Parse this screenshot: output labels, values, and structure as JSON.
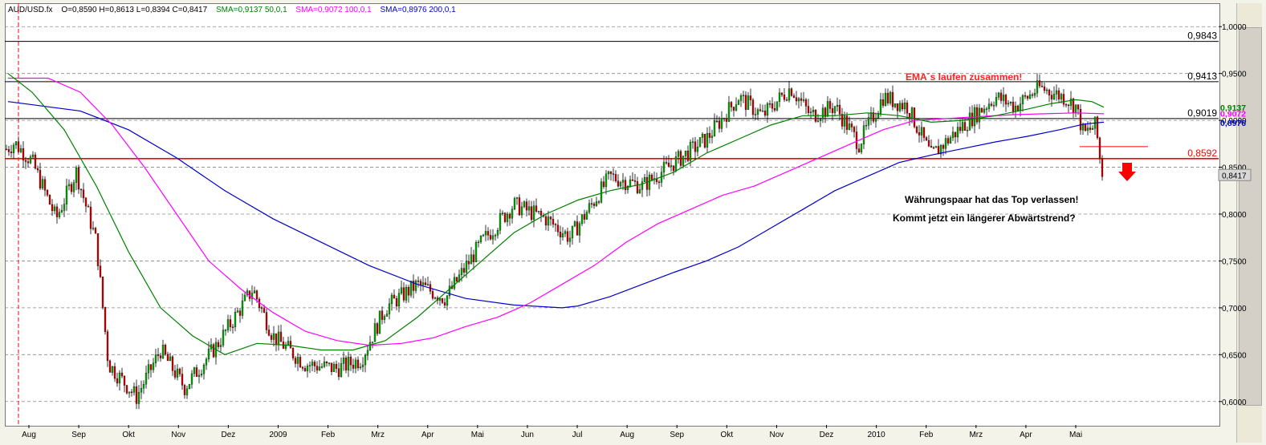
{
  "header": {
    "symbol": "AUD/USD.fx",
    "ohlc": "O=0,8590 H=0,8613 L=0,8394 C=0,8417",
    "sma50": "SMA=0,9137  50,0,1",
    "sma100": "SMA=0,9072  100,0,1",
    "sma200": "SMA=0,8976  200,0,1"
  },
  "colors": {
    "sma50": "#008000",
    "sma100": "#ff00ff",
    "sma200": "#0000cc",
    "bull": "#00aa00",
    "bear": "#cc0000",
    "levels": "#000000",
    "support": "#ff0000"
  },
  "annotations": {
    "ema_note": "EMA´s laufen zusammen!",
    "top_note_1": "Währungspaar hat das Top verlassen!",
    "top_note_2": "Kommt jetzt ein längerer Abwärtstrend?"
  },
  "chart_data": {
    "type": "candlestick",
    "title": "AUD/USD.fx",
    "ylim": [
      0.575,
      1.025
    ],
    "y_ticks": [
      "1,0000",
      "0,9500",
      "0,9000",
      "0,8500",
      "0,8000",
      "0,7500",
      "0,7000",
      "0,6500",
      "0,6000"
    ],
    "x_labels": [
      "Aug",
      "Sep",
      "Okt",
      "Nov",
      "Dez",
      "2009",
      "Feb",
      "Mrz",
      "Apr",
      "Mai",
      "Jun",
      "Jul",
      "Aug",
      "Sep",
      "Okt",
      "Nov",
      "Dez",
      "2010",
      "Feb",
      "Mrz",
      "Apr",
      "Mai"
    ],
    "last_close": 0.8417,
    "horizontal_levels": [
      {
        "value": 0.9843,
        "label": "0,9843"
      },
      {
        "value": 0.9413,
        "label": "0,9413"
      },
      {
        "value": 0.9019,
        "label": "0,9019"
      },
      {
        "value": 0.8592,
        "label": "0,8592"
      }
    ],
    "sma_last": {
      "sma50": "0,9137",
      "sma100": "0,9072",
      "sma200": "0,8976"
    },
    "price_path": [
      [
        0,
        0.868
      ],
      [
        6,
        0.868
      ],
      [
        18,
        0.876
      ],
      [
        40,
        0.856
      ],
      [
        70,
        0.795
      ],
      [
        95,
        0.845
      ],
      [
        120,
        0.77
      ],
      [
        135,
        0.64
      ],
      [
        170,
        0.605
      ],
      [
        200,
        0.655
      ],
      [
        230,
        0.615
      ],
      [
        270,
        0.66
      ],
      [
        315,
        0.72
      ],
      [
        340,
        0.67
      ],
      [
        380,
        0.64
      ],
      [
        420,
        0.635
      ],
      [
        450,
        0.645
      ],
      [
        480,
        0.7
      ],
      [
        520,
        0.725
      ],
      [
        555,
        0.71
      ],
      [
        600,
        0.77
      ],
      [
        640,
        0.81
      ],
      [
        680,
        0.795
      ],
      [
        710,
        0.775
      ],
      [
        760,
        0.84
      ],
      [
        800,
        0.83
      ],
      [
        840,
        0.855
      ],
      [
        880,
        0.88
      ],
      [
        920,
        0.925
      ],
      [
        950,
        0.905
      ],
      [
        985,
        0.935
      ],
      [
        1010,
        0.905
      ],
      [
        1040,
        0.915
      ],
      [
        1070,
        0.875
      ],
      [
        1100,
        0.925
      ],
      [
        1130,
        0.915
      ],
      [
        1160,
        0.862
      ],
      [
        1200,
        0.895
      ],
      [
        1240,
        0.925
      ],
      [
        1265,
        0.915
      ],
      [
        1295,
        0.935
      ],
      [
        1325,
        0.925
      ],
      [
        1340,
        0.915
      ],
      [
        1350,
        0.885
      ],
      [
        1365,
        0.895
      ],
      [
        1372,
        0.845
      ],
      [
        1376,
        0.842
      ]
    ],
    "sma50_path": [
      [
        10,
        0.95
      ],
      [
        40,
        0.93
      ],
      [
        80,
        0.89
      ],
      [
        120,
        0.83
      ],
      [
        160,
        0.76
      ],
      [
        200,
        0.7
      ],
      [
        240,
        0.67
      ],
      [
        280,
        0.65
      ],
      [
        320,
        0.662
      ],
      [
        360,
        0.66
      ],
      [
        400,
        0.655
      ],
      [
        440,
        0.655
      ],
      [
        480,
        0.665
      ],
      [
        520,
        0.69
      ],
      [
        560,
        0.72
      ],
      [
        600,
        0.75
      ],
      [
        640,
        0.78
      ],
      [
        680,
        0.8
      ],
      [
        720,
        0.815
      ],
      [
        760,
        0.825
      ],
      [
        800,
        0.832
      ],
      [
        840,
        0.845
      ],
      [
        880,
        0.865
      ],
      [
        920,
        0.88
      ],
      [
        960,
        0.895
      ],
      [
        1000,
        0.905
      ],
      [
        1040,
        0.905
      ],
      [
        1080,
        0.908
      ],
      [
        1120,
        0.905
      ],
      [
        1160,
        0.898
      ],
      [
        1200,
        0.9
      ],
      [
        1240,
        0.905
      ],
      [
        1280,
        0.912
      ],
      [
        1310,
        0.918
      ],
      [
        1340,
        0.922
      ],
      [
        1360,
        0.92
      ],
      [
        1375,
        0.914
      ]
    ],
    "sma100_path": [
      [
        10,
        0.945
      ],
      [
        60,
        0.945
      ],
      [
        100,
        0.93
      ],
      [
        140,
        0.895
      ],
      [
        180,
        0.85
      ],
      [
        220,
        0.8
      ],
      [
        260,
        0.75
      ],
      [
        300,
        0.72
      ],
      [
        340,
        0.695
      ],
      [
        380,
        0.675
      ],
      [
        420,
        0.665
      ],
      [
        460,
        0.66
      ],
      [
        500,
        0.662
      ],
      [
        540,
        0.668
      ],
      [
        580,
        0.68
      ],
      [
        620,
        0.69
      ],
      [
        660,
        0.705
      ],
      [
        700,
        0.725
      ],
      [
        740,
        0.745
      ],
      [
        780,
        0.77
      ],
      [
        820,
        0.79
      ],
      [
        860,
        0.805
      ],
      [
        900,
        0.82
      ],
      [
        940,
        0.83
      ],
      [
        980,
        0.845
      ],
      [
        1020,
        0.86
      ],
      [
        1060,
        0.875
      ],
      [
        1100,
        0.89
      ],
      [
        1140,
        0.9
      ],
      [
        1180,
        0.902
      ],
      [
        1220,
        0.904
      ],
      [
        1260,
        0.906
      ],
      [
        1300,
        0.907
      ],
      [
        1340,
        0.908
      ],
      [
        1375,
        0.907
      ]
    ],
    "sma200_path": [
      [
        10,
        0.92
      ],
      [
        100,
        0.91
      ],
      [
        160,
        0.89
      ],
      [
        220,
        0.86
      ],
      [
        280,
        0.825
      ],
      [
        340,
        0.795
      ],
      [
        400,
        0.77
      ],
      [
        460,
        0.745
      ],
      [
        520,
        0.725
      ],
      [
        580,
        0.71
      ],
      [
        640,
        0.703
      ],
      [
        700,
        0.7
      ],
      [
        720,
        0.702
      ],
      [
        760,
        0.712
      ],
      [
        800,
        0.725
      ],
      [
        840,
        0.738
      ],
      [
        880,
        0.75
      ],
      [
        920,
        0.765
      ],
      [
        960,
        0.785
      ],
      [
        1000,
        0.805
      ],
      [
        1040,
        0.825
      ],
      [
        1080,
        0.84
      ],
      [
        1120,
        0.855
      ],
      [
        1160,
        0.863
      ],
      [
        1200,
        0.87
      ],
      [
        1240,
        0.877
      ],
      [
        1280,
        0.883
      ],
      [
        1320,
        0.89
      ],
      [
        1350,
        0.896
      ],
      [
        1375,
        0.898
      ]
    ]
  }
}
